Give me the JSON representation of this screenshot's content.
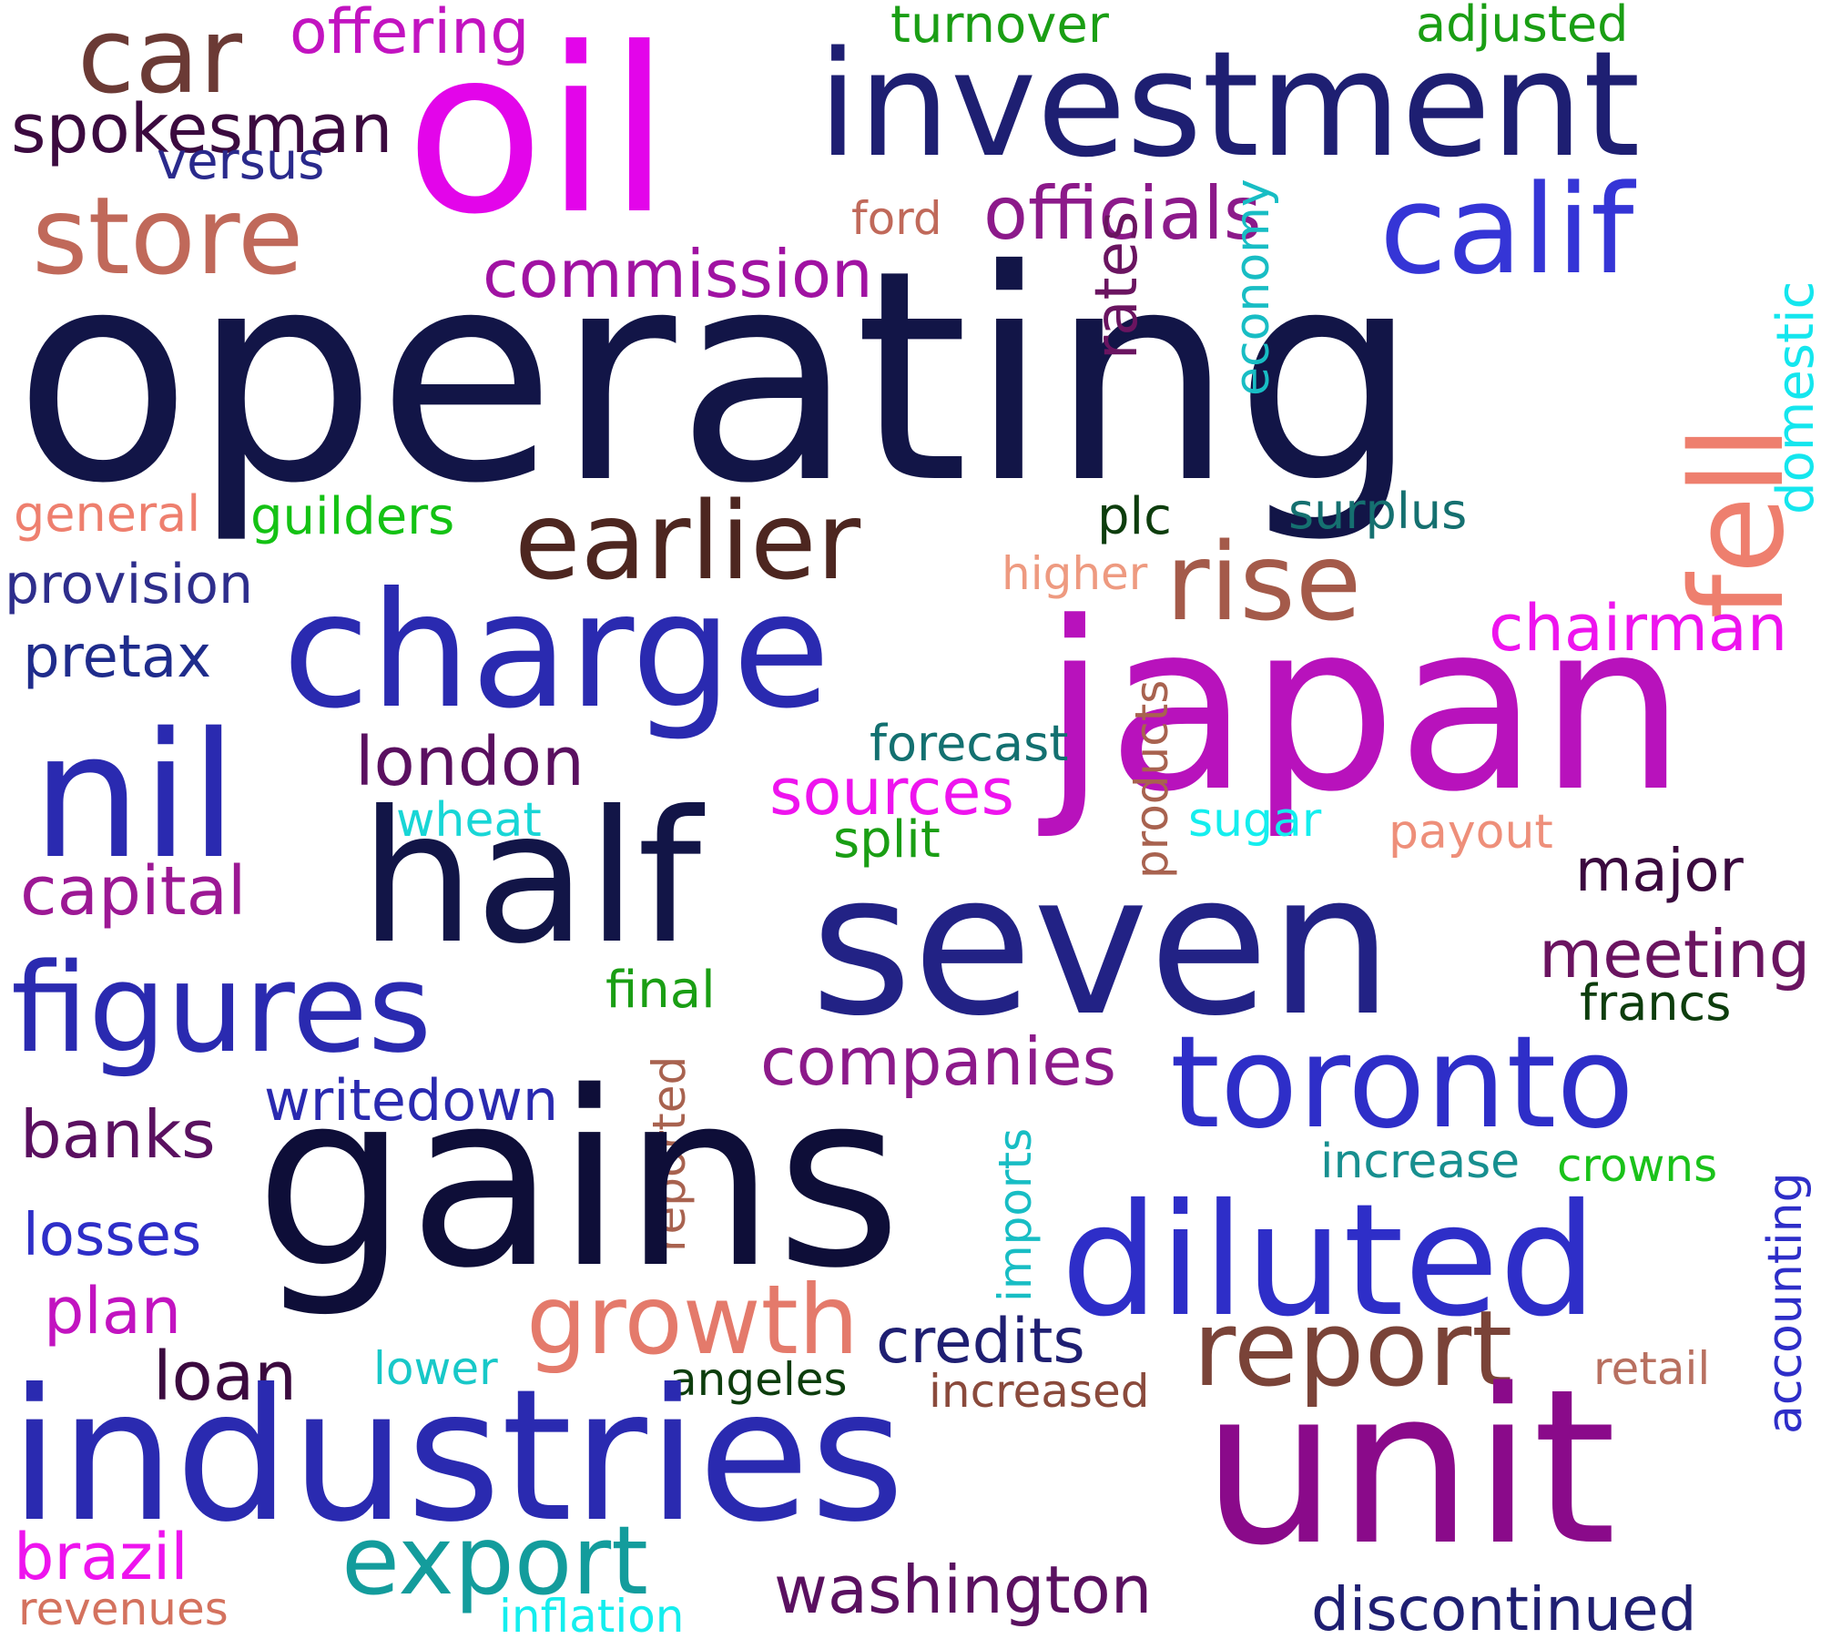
{
  "words": [
    {
      "text": "operating",
      "color": "#121547"
    },
    {
      "text": "oil",
      "color": "#e305ea"
    },
    {
      "text": "investment",
      "color": "#1e1f72"
    },
    {
      "text": "car",
      "color": "#6b3a35"
    },
    {
      "text": "offering",
      "color": "#c213c0"
    },
    {
      "text": "turnover",
      "color": "#1a9e14"
    },
    {
      "text": "adjusted",
      "color": "#1a9e14"
    },
    {
      "text": "spokesman",
      "color": "#3b0a3f"
    },
    {
      "text": "versus",
      "color": "#2a2a8c"
    },
    {
      "text": "store",
      "color": "#c0695a"
    },
    {
      "text": "ford",
      "color": "#c0695a"
    },
    {
      "text": "officials",
      "color": "#8c1a8a"
    },
    {
      "text": "calif",
      "color": "#3535d6"
    },
    {
      "text": "commission",
      "color": "#a012a2"
    },
    {
      "text": "rates",
      "color": "#6a1460"
    },
    {
      "text": "economy",
      "color": "#18bdc4"
    },
    {
      "text": "fell",
      "color": "#ee7f6e"
    },
    {
      "text": "domestic",
      "color": "#14e6ee"
    },
    {
      "text": "general",
      "color": "#ee7f6e"
    },
    {
      "text": "guilders",
      "color": "#14c214"
    },
    {
      "text": "plc",
      "color": "#0d3d0d"
    },
    {
      "text": "surplus",
      "color": "#157070"
    },
    {
      "text": "earlier",
      "color": "#4d2620"
    },
    {
      "text": "rise",
      "color": "#a45a4a"
    },
    {
      "text": "higher",
      "color": "#ee9a80"
    },
    {
      "text": "provision",
      "color": "#2e2e8c"
    },
    {
      "text": "charge",
      "color": "#2a2ab0"
    },
    {
      "text": "chairman",
      "color": "#ee14ee"
    },
    {
      "text": "pretax",
      "color": "#1f2c8c"
    },
    {
      "text": "japan",
      "color": "#b812bc"
    },
    {
      "text": "products",
      "color": "#a8624f"
    },
    {
      "text": "forecast",
      "color": "#137070"
    },
    {
      "text": "nil",
      "color": "#2a2ab0"
    },
    {
      "text": "london",
      "color": "#5a1060"
    },
    {
      "text": "sources",
      "color": "#ee14ee"
    },
    {
      "text": "half",
      "color": "#121547"
    },
    {
      "text": "wheat",
      "color": "#18d6d6"
    },
    {
      "text": "sugar",
      "color": "#14eeee"
    },
    {
      "text": "payout",
      "color": "#ee8f7a"
    },
    {
      "text": "split",
      "color": "#1a9e14"
    },
    {
      "text": "capital",
      "color": "#9c1894"
    },
    {
      "text": "major",
      "color": "#3b0a3f"
    },
    {
      "text": "seven",
      "color": "#222285"
    },
    {
      "text": "meeting",
      "color": "#6a1460"
    },
    {
      "text": "figures",
      "color": "#2a2ab0"
    },
    {
      "text": "final",
      "color": "#1a9e14"
    },
    {
      "text": "francs",
      "color": "#0d3d0d"
    },
    {
      "text": "companies",
      "color": "#8c1a8a"
    },
    {
      "text": "toronto",
      "color": "#2e2ec8"
    },
    {
      "text": "writedown",
      "color": "#2a2ab0"
    },
    {
      "text": "reported",
      "color": "#a8624f"
    },
    {
      "text": "banks",
      "color": "#5a1060"
    },
    {
      "text": "gains",
      "color": "#0e0e38"
    },
    {
      "text": "imports",
      "color": "#18bdc4"
    },
    {
      "text": "increase",
      "color": "#178f8f"
    },
    {
      "text": "crowns",
      "color": "#1ac21a"
    },
    {
      "text": "accounting",
      "color": "#2e2ec8"
    },
    {
      "text": "diluted",
      "color": "#2e2ec8"
    },
    {
      "text": "losses",
      "color": "#2e2ec8"
    },
    {
      "text": "plan",
      "color": "#c213c0"
    },
    {
      "text": "growth",
      "color": "#e47a6b"
    },
    {
      "text": "credits",
      "color": "#1f1f72"
    },
    {
      "text": "report",
      "color": "#7a4338"
    },
    {
      "text": "loan",
      "color": "#3b0a3f"
    },
    {
      "text": "lower",
      "color": "#18c8c8"
    },
    {
      "text": "angeles",
      "color": "#0d3d0d"
    },
    {
      "text": "increased",
      "color": "#8a4a3c"
    },
    {
      "text": "retail",
      "color": "#b87060"
    },
    {
      "text": "industries",
      "color": "#2a2ab0"
    },
    {
      "text": "unit",
      "color": "#8a0a8a"
    },
    {
      "text": "brazil",
      "color": "#ee14ee"
    },
    {
      "text": "export",
      "color": "#139c9c"
    },
    {
      "text": "washington",
      "color": "#5a1060"
    },
    {
      "text": "revenues",
      "color": "#d4725e"
    },
    {
      "text": "inflation",
      "color": "#14eeee"
    },
    {
      "text": "discontinued",
      "color": "#1f1f72"
    }
  ]
}
